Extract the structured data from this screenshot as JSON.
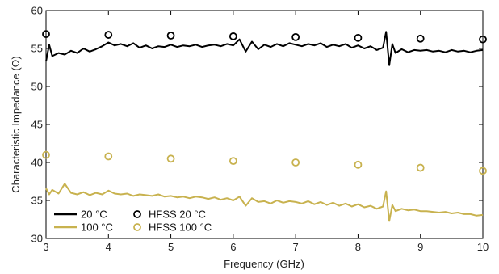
{
  "chart_data": {
    "type": "line",
    "title": "",
    "xlabel": "Frequency (GHz)",
    "ylabel": "Characteristic Impedance (Ω)",
    "xlim": [
      3,
      10
    ],
    "ylim": [
      30,
      60
    ],
    "xticks": [
      3,
      4,
      5,
      6,
      7,
      8,
      9,
      10
    ],
    "yticks": [
      30,
      35,
      40,
      45,
      50,
      55,
      60
    ],
    "grid": false,
    "legend_position": "bottom-left",
    "series": [
      {
        "name": "20 °C",
        "kind": "line",
        "color": "#000000",
        "x": [
          3.0,
          3.05,
          3.1,
          3.2,
          3.3,
          3.4,
          3.5,
          3.6,
          3.7,
          3.8,
          3.9,
          4.0,
          4.1,
          4.2,
          4.3,
          4.4,
          4.5,
          4.6,
          4.7,
          4.8,
          4.9,
          5.0,
          5.1,
          5.2,
          5.3,
          5.4,
          5.5,
          5.6,
          5.7,
          5.8,
          5.9,
          6.0,
          6.1,
          6.2,
          6.3,
          6.4,
          6.5,
          6.6,
          6.7,
          6.8,
          6.9,
          7.0,
          7.1,
          7.2,
          7.3,
          7.4,
          7.5,
          7.6,
          7.7,
          7.8,
          7.9,
          8.0,
          8.1,
          8.2,
          8.3,
          8.4,
          8.45,
          8.5,
          8.55,
          8.6,
          8.7,
          8.8,
          8.9,
          9.0,
          9.1,
          9.2,
          9.3,
          9.4,
          9.5,
          9.6,
          9.7,
          9.8,
          9.9,
          10.0
        ],
        "y": [
          53.3,
          55.5,
          54.0,
          54.4,
          54.2,
          54.7,
          54.4,
          55.0,
          54.6,
          54.9,
          55.3,
          55.8,
          55.4,
          55.6,
          55.3,
          55.7,
          55.1,
          55.4,
          55.0,
          55.3,
          55.2,
          55.5,
          55.2,
          55.4,
          55.3,
          55.5,
          55.2,
          55.4,
          55.5,
          55.3,
          55.6,
          55.4,
          56.2,
          54.6,
          55.9,
          54.9,
          55.5,
          55.2,
          55.6,
          55.3,
          55.7,
          55.5,
          55.3,
          55.6,
          55.4,
          55.7,
          55.2,
          55.5,
          55.3,
          55.6,
          55.1,
          55.4,
          55.0,
          55.3,
          54.8,
          55.1,
          57.2,
          52.8,
          55.6,
          54.4,
          54.9,
          54.5,
          54.8,
          54.7,
          54.8,
          54.6,
          54.7,
          54.5,
          54.8,
          54.6,
          54.7,
          54.5,
          54.7,
          54.8
        ]
      },
      {
        "name": "100 °C",
        "kind": "line",
        "color": "#c8b24f",
        "x": [
          3.0,
          3.05,
          3.1,
          3.2,
          3.3,
          3.4,
          3.5,
          3.6,
          3.7,
          3.8,
          3.9,
          4.0,
          4.1,
          4.2,
          4.3,
          4.4,
          4.5,
          4.6,
          4.7,
          4.8,
          4.9,
          5.0,
          5.1,
          5.2,
          5.3,
          5.4,
          5.5,
          5.6,
          5.7,
          5.8,
          5.9,
          6.0,
          6.1,
          6.2,
          6.3,
          6.4,
          6.5,
          6.6,
          6.7,
          6.8,
          6.9,
          7.0,
          7.1,
          7.2,
          7.3,
          7.4,
          7.5,
          7.6,
          7.7,
          7.8,
          7.9,
          8.0,
          8.1,
          8.2,
          8.3,
          8.4,
          8.45,
          8.5,
          8.55,
          8.6,
          8.7,
          8.8,
          8.9,
          9.0,
          9.1,
          9.2,
          9.3,
          9.4,
          9.5,
          9.6,
          9.7,
          9.8,
          9.9,
          10.0
        ],
        "y": [
          36.6,
          35.8,
          36.4,
          35.9,
          37.2,
          36.0,
          35.8,
          36.1,
          35.7,
          36.0,
          35.8,
          36.3,
          35.9,
          35.8,
          35.9,
          35.6,
          35.8,
          35.7,
          35.6,
          35.8,
          35.5,
          35.6,
          35.4,
          35.5,
          35.3,
          35.5,
          35.4,
          35.2,
          35.4,
          35.1,
          35.3,
          35.0,
          35.5,
          34.3,
          35.3,
          34.8,
          34.9,
          34.6,
          35.0,
          34.7,
          34.9,
          34.8,
          34.6,
          34.9,
          34.5,
          34.8,
          34.4,
          34.7,
          34.3,
          34.6,
          34.2,
          34.5,
          34.1,
          34.3,
          33.9,
          34.2,
          36.2,
          32.3,
          34.4,
          33.6,
          33.9,
          33.7,
          33.8,
          33.6,
          33.6,
          33.5,
          33.4,
          33.5,
          33.3,
          33.4,
          33.2,
          33.2,
          33.0,
          33.1
        ]
      },
      {
        "name": "HFSS 20 °C",
        "kind": "markers",
        "color": "#000000",
        "x": [
          3,
          4,
          5,
          6,
          7,
          8,
          9,
          10
        ],
        "y": [
          56.9,
          56.8,
          56.7,
          56.6,
          56.5,
          56.4,
          56.3,
          56.2
        ]
      },
      {
        "name": "HFSS 100 °C",
        "kind": "markers",
        "color": "#c8b24f",
        "x": [
          3,
          4,
          5,
          6,
          7,
          8,
          9,
          10
        ],
        "y": [
          41.0,
          40.8,
          40.5,
          40.2,
          40.0,
          39.7,
          39.3,
          38.9
        ]
      }
    ]
  }
}
